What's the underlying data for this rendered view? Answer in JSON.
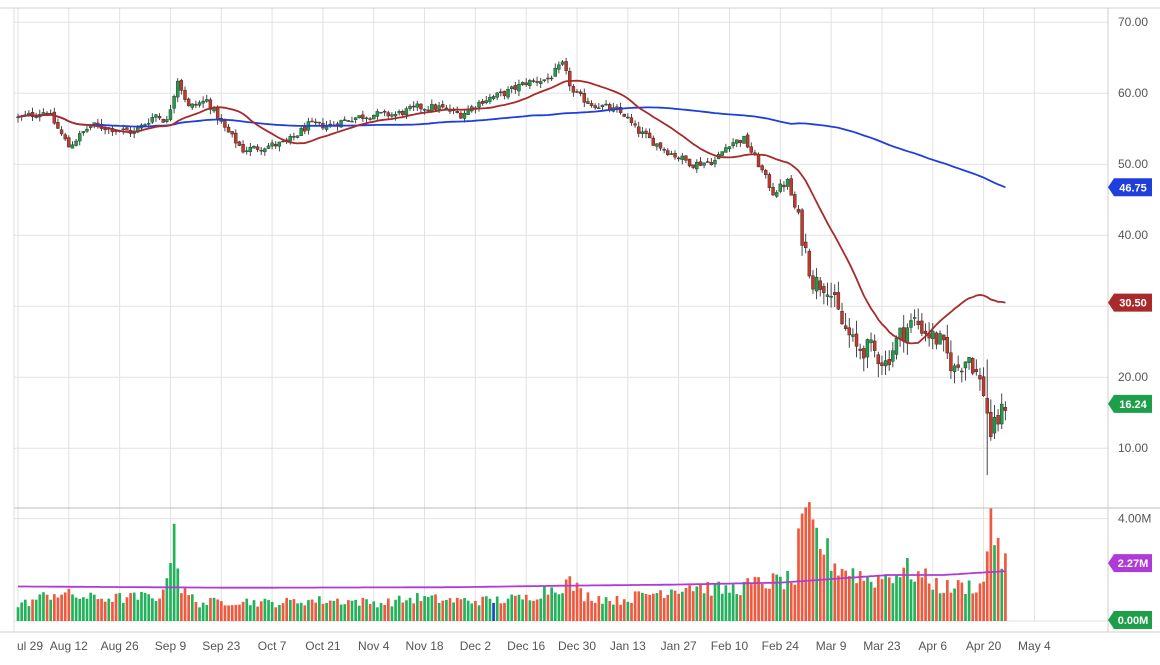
{
  "chart_data": {
    "type": "candlestick",
    "price_axis": {
      "range": [
        2,
        72
      ],
      "ticks": [
        10,
        20,
        30,
        40,
        50,
        60,
        70
      ],
      "tick_labels": [
        "10.00",
        "20.00",
        "30.00",
        "40.00",
        "50.00",
        "60.00",
        "70.00"
      ]
    },
    "volume_axis": {
      "range": [
        0,
        4.3
      ],
      "ticks": [
        0,
        4
      ],
      "tick_labels": [
        "0.00M",
        "4.00M"
      ]
    },
    "x_axis": {
      "labels": [
        "ul 29",
        "Aug 12",
        "Aug 26",
        "Sep 9",
        "Sep 23",
        "Oct 7",
        "Oct 21",
        "Nov 4",
        "Nov 18",
        "Dec 2",
        "Dec 16",
        "Dec 30",
        "Jan 13",
        "Jan 27",
        "Feb 10",
        "Feb 24",
        "Mar 9",
        "Mar 23",
        "Apr 6",
        "Apr 20",
        "May 4"
      ]
    },
    "badges": {
      "ma_slow": "46.75",
      "ma_fast": "30.50",
      "last_price": "16.24",
      "volume_avg": "2.27M",
      "volume_zero": "0.00M"
    },
    "colors": {
      "up": "#1f9e4a",
      "down": "#c0392b",
      "up_volume": "#22b35a",
      "down_volume": "#ee5a3f",
      "ma_slow": "#1f3fdd",
      "ma_fast": "#a82a2a",
      "volume_ma": "#b03ad6",
      "grid": "#e2e2e2"
    },
    "price_anchors": [
      [
        0,
        56.5
      ],
      [
        8,
        57.5
      ],
      [
        14,
        52.5
      ],
      [
        20,
        55.5
      ],
      [
        26,
        55
      ],
      [
        32,
        54.5
      ],
      [
        38,
        57
      ],
      [
        41,
        56
      ],
      [
        44,
        62
      ],
      [
        47,
        58
      ],
      [
        52,
        59
      ],
      [
        57,
        55
      ],
      [
        62,
        52
      ],
      [
        68,
        52.5
      ],
      [
        74,
        53
      ],
      [
        80,
        55.5
      ],
      [
        86,
        55.5
      ],
      [
        92,
        56.5
      ],
      [
        98,
        57
      ],
      [
        104,
        57
      ],
      [
        110,
        58
      ],
      [
        116,
        58
      ],
      [
        122,
        57
      ],
      [
        128,
        59
      ],
      [
        134,
        60
      ],
      [
        140,
        61.5
      ],
      [
        146,
        62
      ],
      [
        150,
        64
      ],
      [
        153,
        60
      ],
      [
        158,
        58.5
      ],
      [
        162,
        58
      ],
      [
        167,
        57
      ],
      [
        170,
        55
      ],
      [
        174,
        53.5
      ],
      [
        180,
        51.5
      ],
      [
        186,
        50
      ],
      [
        192,
        50.5
      ],
      [
        196,
        53
      ],
      [
        200,
        53.5
      ],
      [
        204,
        50
      ],
      [
        208,
        46
      ],
      [
        212,
        47.5
      ],
      [
        215,
        42
      ],
      [
        219,
        33.5
      ],
      [
        223,
        33
      ],
      [
        227,
        27.5
      ],
      [
        231,
        24
      ],
      [
        235,
        24
      ],
      [
        239,
        22
      ],
      [
        243,
        26
      ],
      [
        247,
        28
      ],
      [
        251,
        26
      ],
      [
        254,
        25
      ],
      [
        258,
        21
      ],
      [
        262,
        23
      ],
      [
        266,
        18
      ],
      [
        268,
        12
      ],
      [
        270,
        14
      ],
      [
        272,
        16.24
      ]
    ],
    "volume_anchors": [
      [
        0,
        0.6
      ],
      [
        10,
        1.1
      ],
      [
        20,
        0.9
      ],
      [
        30,
        0.9
      ],
      [
        40,
        1.0
      ],
      [
        43,
        3.8
      ],
      [
        44,
        2.5
      ],
      [
        45,
        1.2
      ],
      [
        50,
        0.7
      ],
      [
        60,
        0.8
      ],
      [
        70,
        0.7
      ],
      [
        80,
        0.8
      ],
      [
        90,
        0.8
      ],
      [
        100,
        0.7
      ],
      [
        110,
        0.9
      ],
      [
        120,
        0.8
      ],
      [
        130,
        0.8
      ],
      [
        140,
        0.9
      ],
      [
        145,
        1.2
      ],
      [
        152,
        1.5
      ],
      [
        156,
        1.0
      ],
      [
        165,
        0.8
      ],
      [
        175,
        1.1
      ],
      [
        185,
        1.4
      ],
      [
        195,
        1.2
      ],
      [
        205,
        1.5
      ],
      [
        214,
        1.6
      ],
      [
        216,
        4.2
      ],
      [
        225,
        2.2
      ],
      [
        235,
        1.6
      ],
      [
        245,
        2.0
      ],
      [
        255,
        1.3
      ],
      [
        266,
        1.4
      ],
      [
        268,
        4.4
      ],
      [
        270,
        2.6
      ],
      [
        272,
        2.3
      ]
    ],
    "volume_avg_anchors": [
      [
        0,
        1.35
      ],
      [
        60,
        1.3
      ],
      [
        120,
        1.32
      ],
      [
        150,
        1.38
      ],
      [
        180,
        1.42
      ],
      [
        210,
        1.5
      ],
      [
        240,
        1.8
      ],
      [
        255,
        1.8
      ],
      [
        272,
        1.95
      ]
    ]
  }
}
